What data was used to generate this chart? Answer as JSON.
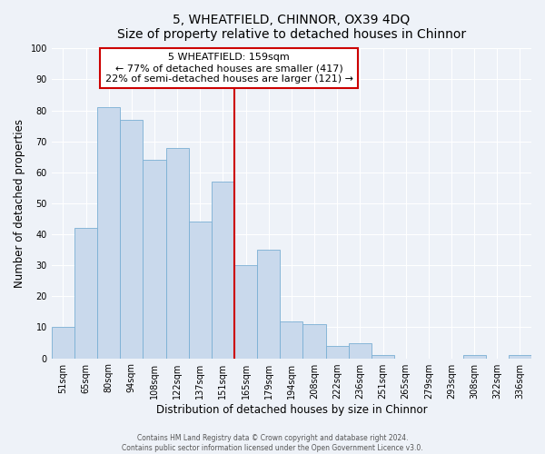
{
  "title": "5, WHEATFIELD, CHINNOR, OX39 4DQ",
  "subtitle": "Size of property relative to detached houses in Chinnor",
  "xlabel": "Distribution of detached houses by size in Chinnor",
  "ylabel": "Number of detached properties",
  "categories": [
    "51sqm",
    "65sqm",
    "80sqm",
    "94sqm",
    "108sqm",
    "122sqm",
    "137sqm",
    "151sqm",
    "165sqm",
    "179sqm",
    "194sqm",
    "208sqm",
    "222sqm",
    "236sqm",
    "251sqm",
    "265sqm",
    "279sqm",
    "293sqm",
    "308sqm",
    "322sqm",
    "336sqm"
  ],
  "values": [
    10,
    42,
    81,
    77,
    64,
    68,
    44,
    57,
    30,
    35,
    12,
    11,
    4,
    5,
    1,
    0,
    0,
    0,
    1,
    0,
    1
  ],
  "bar_color": "#c9d9ec",
  "bar_edge_color": "#7aafd4",
  "reference_label": "5 WHEATFIELD: 159sqm",
  "annotation_line1": "← 77% of detached houses are smaller (417)",
  "annotation_line2": "22% of semi-detached houses are larger (121) →",
  "annotation_box_color": "#ffffff",
  "annotation_box_edge": "#cc0000",
  "reference_line_color": "#cc0000",
  "ylim": [
    0,
    100
  ],
  "footer1": "Contains HM Land Registry data © Crown copyright and database right 2024.",
  "footer2": "Contains public sector information licensed under the Open Government Licence v3.0.",
  "background_color": "#eef2f8",
  "grid_color": "#ffffff",
  "title_fontsize": 10,
  "subtitle_fontsize": 9,
  "tick_fontsize": 7,
  "label_fontsize": 8.5
}
